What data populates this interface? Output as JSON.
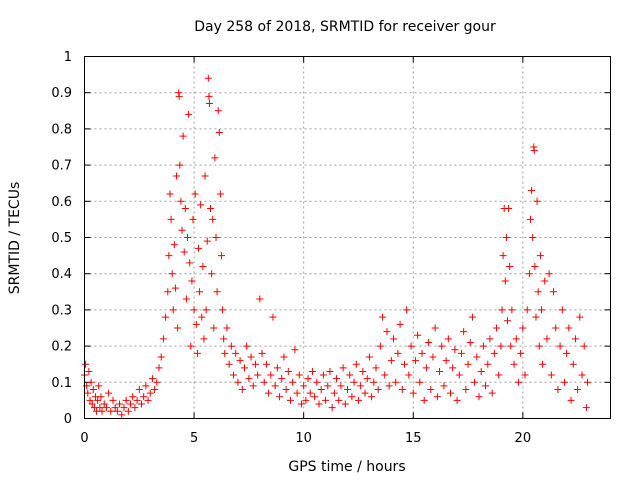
{
  "chart_data": {
    "type": "scatter",
    "title": "Day 258 of 2018, SRMTID for receiver gour",
    "xlabel": "GPS time / hours",
    "ylabel": "SRMTID / TECUs",
    "xlim": [
      0,
      24
    ],
    "ylim": [
      0,
      1
    ],
    "xticks": [
      0,
      5,
      10,
      15,
      20
    ],
    "xtick_labels": [
      "0",
      "5",
      "10",
      "15",
      "20"
    ],
    "yticks": [
      0,
      0.1,
      0.2,
      0.3,
      0.4,
      0.5,
      0.6,
      0.7,
      0.8,
      0.9,
      1
    ],
    "ytick_labels": [
      "0",
      "0.1",
      "0.2",
      "0.3",
      "0.4",
      "0.5",
      "0.6",
      "0.7",
      "0.8",
      "0.9",
      "1"
    ],
    "grid": true,
    "marker": "+",
    "color": "#ff0000",
    "series": [
      {
        "name": "SRMTID",
        "points": [
          [
            0.0,
            0.12
          ],
          [
            0.05,
            0.15
          ],
          [
            0.1,
            0.09
          ],
          [
            0.15,
            0.07
          ],
          [
            0.2,
            0.13
          ],
          [
            0.25,
            0.05
          ],
          [
            0.3,
            0.1
          ],
          [
            0.35,
            0.04
          ],
          [
            0.4,
            0.08
          ],
          [
            0.45,
            0.03
          ],
          [
            0.5,
            0.06
          ],
          [
            0.55,
            0.02
          ],
          [
            0.6,
            0.05
          ],
          [
            0.65,
            0.09
          ],
          [
            0.7,
            0.03
          ],
          [
            0.75,
            0.06
          ],
          [
            0.8,
            0.02
          ],
          [
            0.9,
            0.04
          ],
          [
            1.0,
            0.03
          ],
          [
            1.1,
            0.07
          ],
          [
            1.2,
            0.02
          ],
          [
            1.3,
            0.05
          ],
          [
            1.4,
            0.03
          ],
          [
            1.5,
            0.02
          ],
          [
            1.6,
            0.04
          ],
          [
            1.7,
            0.01
          ],
          [
            1.8,
            0.03
          ],
          [
            1.9,
            0.05
          ],
          [
            2.0,
            0.02
          ],
          [
            2.1,
            0.04
          ],
          [
            2.2,
            0.06
          ],
          [
            2.3,
            0.03
          ],
          [
            2.4,
            0.05
          ],
          [
            2.5,
            0.08
          ],
          [
            2.6,
            0.04
          ],
          [
            2.7,
            0.06
          ],
          [
            2.8,
            0.09
          ],
          [
            2.9,
            0.05
          ],
          [
            3.0,
            0.07
          ],
          [
            3.1,
            0.11
          ],
          [
            3.2,
            0.08
          ],
          [
            3.3,
            0.1
          ],
          [
            3.4,
            0.14
          ],
          [
            3.5,
            0.17
          ],
          [
            3.6,
            0.22
          ],
          [
            3.7,
            0.28
          ],
          [
            3.8,
            0.35
          ],
          [
            3.85,
            0.45
          ],
          [
            3.9,
            0.62
          ],
          [
            3.95,
            0.55
          ],
          [
            4.0,
            0.4
          ],
          [
            4.05,
            0.3
          ],
          [
            4.1,
            0.48
          ],
          [
            4.15,
            0.36
          ],
          [
            4.2,
            0.67
          ],
          [
            4.25,
            0.25
          ],
          [
            4.3,
            0.9
          ],
          [
            4.32,
            0.89
          ],
          [
            4.35,
            0.7
          ],
          [
            4.4,
            0.6
          ],
          [
            4.45,
            0.52
          ],
          [
            4.5,
            0.78
          ],
          [
            4.55,
            0.46
          ],
          [
            4.6,
            0.58
          ],
          [
            4.65,
            0.33
          ],
          [
            4.7,
            0.5
          ],
          [
            4.75,
            0.84
          ],
          [
            4.8,
            0.43
          ],
          [
            4.85,
            0.2
          ],
          [
            4.9,
            0.38
          ],
          [
            4.95,
            0.55
          ],
          [
            5.0,
            0.3
          ],
          [
            5.05,
            0.62
          ],
          [
            5.1,
            0.26
          ],
          [
            5.15,
            0.18
          ],
          [
            5.2,
            0.47
          ],
          [
            5.25,
            0.35
          ],
          [
            5.3,
            0.59
          ],
          [
            5.35,
            0.28
          ],
          [
            5.4,
            0.42
          ],
          [
            5.45,
            0.22
          ],
          [
            5.5,
            0.67
          ],
          [
            5.55,
            0.3
          ],
          [
            5.6,
            0.49
          ],
          [
            5.65,
            0.94
          ],
          [
            5.68,
            0.89
          ],
          [
            5.7,
            0.87
          ],
          [
            5.75,
            0.58
          ],
          [
            5.8,
            0.4
          ],
          [
            5.85,
            0.55
          ],
          [
            5.9,
            0.25
          ],
          [
            5.95,
            0.72
          ],
          [
            6.0,
            0.5
          ],
          [
            6.05,
            0.35
          ],
          [
            6.1,
            0.85
          ],
          [
            6.15,
            0.79
          ],
          [
            6.2,
            0.62
          ],
          [
            6.25,
            0.45
          ],
          [
            6.3,
            0.3
          ],
          [
            6.35,
            0.22
          ],
          [
            6.4,
            0.18
          ],
          [
            6.5,
            0.25
          ],
          [
            6.6,
            0.15
          ],
          [
            6.7,
            0.2
          ],
          [
            6.8,
            0.12
          ],
          [
            6.9,
            0.18
          ],
          [
            7.0,
            0.1
          ],
          [
            7.1,
            0.16
          ],
          [
            7.2,
            0.08
          ],
          [
            7.3,
            0.14
          ],
          [
            7.4,
            0.2
          ],
          [
            7.5,
            0.11
          ],
          [
            7.6,
            0.17
          ],
          [
            7.7,
            0.09
          ],
          [
            7.8,
            0.15
          ],
          [
            7.9,
            0.12
          ],
          [
            8.0,
            0.33
          ],
          [
            8.1,
            0.18
          ],
          [
            8.2,
            0.1
          ],
          [
            8.3,
            0.15
          ],
          [
            8.4,
            0.07
          ],
          [
            8.5,
            0.12
          ],
          [
            8.6,
            0.28
          ],
          [
            8.7,
            0.09
          ],
          [
            8.8,
            0.14
          ],
          [
            8.9,
            0.06
          ],
          [
            9.0,
            0.11
          ],
          [
            9.1,
            0.17
          ],
          [
            9.2,
            0.08
          ],
          [
            9.3,
            0.13
          ],
          [
            9.4,
            0.05
          ],
          [
            9.5,
            0.1
          ],
          [
            9.6,
            0.19
          ],
          [
            9.7,
            0.07
          ],
          [
            9.8,
            0.12
          ],
          [
            9.9,
            0.04
          ],
          [
            10.0,
            0.09
          ],
          [
            10.1,
            0.05
          ],
          [
            10.2,
            0.11
          ],
          [
            10.3,
            0.07
          ],
          [
            10.4,
            0.13
          ],
          [
            10.5,
            0.06
          ],
          [
            10.6,
            0.1
          ],
          [
            10.7,
            0.04
          ],
          [
            10.8,
            0.08
          ],
          [
            10.9,
            0.12
          ],
          [
            11.0,
            0.05
          ],
          [
            11.1,
            0.09
          ],
          [
            11.2,
            0.13
          ],
          [
            11.3,
            0.03
          ],
          [
            11.4,
            0.07
          ],
          [
            11.5,
            0.11
          ],
          [
            11.6,
            0.05
          ],
          [
            11.7,
            0.09
          ],
          [
            11.8,
            0.14
          ],
          [
            11.9,
            0.04
          ],
          [
            12.0,
            0.08
          ],
          [
            12.1,
            0.12
          ],
          [
            12.2,
            0.06
          ],
          [
            12.3,
            0.1
          ],
          [
            12.4,
            0.15
          ],
          [
            12.5,
            0.05
          ],
          [
            12.6,
            0.09
          ],
          [
            12.7,
            0.13
          ],
          [
            12.8,
            0.07
          ],
          [
            12.9,
            0.11
          ],
          [
            13.0,
            0.17
          ],
          [
            13.1,
            0.06
          ],
          [
            13.2,
            0.1
          ],
          [
            13.3,
            0.14
          ],
          [
            13.4,
            0.08
          ],
          [
            13.5,
            0.2
          ],
          [
            13.6,
            0.28
          ],
          [
            13.7,
            0.12
          ],
          [
            13.8,
            0.24
          ],
          [
            13.9,
            0.09
          ],
          [
            14.0,
            0.16
          ],
          [
            14.1,
            0.22
          ],
          [
            14.2,
            0.1
          ],
          [
            14.3,
            0.18
          ],
          [
            14.4,
            0.26
          ],
          [
            14.5,
            0.08
          ],
          [
            14.6,
            0.15
          ],
          [
            14.7,
            0.3
          ],
          [
            14.8,
            0.12
          ],
          [
            14.9,
            0.2
          ],
          [
            15.0,
            0.07
          ],
          [
            15.1,
            0.16
          ],
          [
            15.2,
            0.23
          ],
          [
            15.3,
            0.1
          ],
          [
            15.4,
            0.18
          ],
          [
            15.5,
            0.05
          ],
          [
            15.6,
            0.14
          ],
          [
            15.7,
            0.21
          ],
          [
            15.8,
            0.08
          ],
          [
            15.9,
            0.17
          ],
          [
            16.0,
            0.25
          ],
          [
            16.1,
            0.06
          ],
          [
            16.2,
            0.13
          ],
          [
            16.3,
            0.2
          ],
          [
            16.4,
            0.09
          ],
          [
            16.5,
            0.16
          ],
          [
            16.6,
            0.22
          ],
          [
            16.7,
            0.07
          ],
          [
            16.8,
            0.14
          ],
          [
            16.9,
            0.19
          ],
          [
            17.0,
            0.05
          ],
          [
            17.1,
            0.12
          ],
          [
            17.2,
            0.18
          ],
          [
            17.3,
            0.24
          ],
          [
            17.4,
            0.08
          ],
          [
            17.5,
            0.15
          ],
          [
            17.6,
            0.21
          ],
          [
            17.7,
            0.28
          ],
          [
            17.8,
            0.1
          ],
          [
            17.9,
            0.17
          ],
          [
            18.0,
            0.06
          ],
          [
            18.1,
            0.13
          ],
          [
            18.2,
            0.2
          ],
          [
            18.3,
            0.09
          ],
          [
            18.4,
            0.15
          ],
          [
            18.5,
            0.22
          ],
          [
            18.6,
            0.07
          ],
          [
            18.7,
            0.18
          ],
          [
            18.8,
            0.25
          ],
          [
            18.9,
            0.12
          ],
          [
            19.0,
            0.2
          ],
          [
            19.05,
            0.3
          ],
          [
            19.1,
            0.45
          ],
          [
            19.15,
            0.58
          ],
          [
            19.2,
            0.38
          ],
          [
            19.25,
            0.5
          ],
          [
            19.3,
            0.27
          ],
          [
            19.35,
            0.58
          ],
          [
            19.4,
            0.42
          ],
          [
            19.45,
            0.2
          ],
          [
            19.5,
            0.3
          ],
          [
            19.6,
            0.15
          ],
          [
            19.7,
            0.22
          ],
          [
            19.8,
            0.1
          ],
          [
            19.9,
            0.18
          ],
          [
            20.0,
            0.25
          ],
          [
            20.1,
            0.12
          ],
          [
            20.2,
            0.3
          ],
          [
            20.3,
            0.4
          ],
          [
            20.35,
            0.55
          ],
          [
            20.4,
            0.63
          ],
          [
            20.45,
            0.5
          ],
          [
            20.5,
            0.75
          ],
          [
            20.52,
            0.74
          ],
          [
            20.55,
            0.42
          ],
          [
            20.6,
            0.28
          ],
          [
            20.65,
            0.6
          ],
          [
            20.7,
            0.35
          ],
          [
            20.75,
            0.2
          ],
          [
            20.8,
            0.45
          ],
          [
            20.85,
            0.3
          ],
          [
            20.9,
            0.15
          ],
          [
            21.0,
            0.38
          ],
          [
            21.1,
            0.22
          ],
          [
            21.2,
            0.4
          ],
          [
            21.3,
            0.12
          ],
          [
            21.4,
            0.35
          ],
          [
            21.5,
            0.25
          ],
          [
            21.6,
            0.08
          ],
          [
            21.7,
            0.2
          ],
          [
            21.8,
            0.3
          ],
          [
            21.9,
            0.1
          ],
          [
            22.0,
            0.18
          ],
          [
            22.1,
            0.25
          ],
          [
            22.2,
            0.05
          ],
          [
            22.3,
            0.15
          ],
          [
            22.4,
            0.22
          ],
          [
            22.5,
            0.08
          ],
          [
            22.6,
            0.28
          ],
          [
            22.7,
            0.12
          ],
          [
            22.8,
            0.2
          ],
          [
            22.9,
            0.03
          ],
          [
            22.95,
            0.1
          ]
        ]
      }
    ]
  }
}
